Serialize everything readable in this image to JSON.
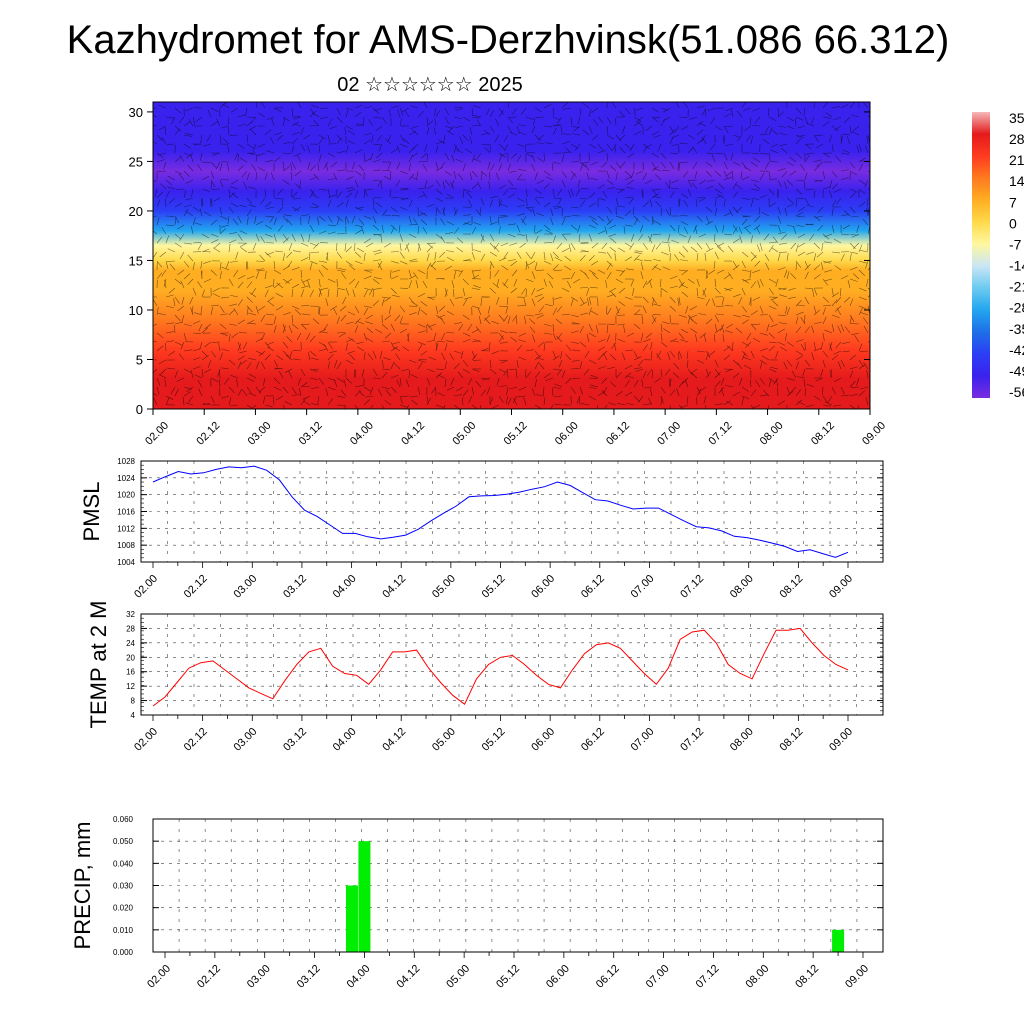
{
  "title": "Kazhydromet for AMS-Derzhvinsk(51.086 66.312)",
  "subtitle": "02 ☆☆☆☆☆☆ 2025",
  "colors": {
    "pmsl_line": "#0000ff",
    "temp_line": "#ff0000",
    "precip_bar": "#00ee00",
    "axis": "#000000"
  },
  "chart_data": [
    {
      "type": "heatmap",
      "name": "cross-section",
      "x_tick_labels": [
        "02.00",
        "02.12",
        "03.00",
        "03.12",
        "04.00",
        "04.12",
        "05.00",
        "05.12",
        "06.00",
        "06.12",
        "07.00",
        "07.12",
        "08.00",
        "08.12",
        "09.00"
      ],
      "y_tick_labels": [
        "0",
        "5",
        "10",
        "15",
        "20",
        "25",
        "30"
      ],
      "ylim": [
        0,
        31
      ],
      "colorbar_labels": [
        "35",
        "28",
        "21",
        "14",
        "7",
        "0",
        "-7",
        "-14",
        "-21",
        "-28",
        "-35",
        "-42",
        "-49",
        "-56"
      ],
      "colorbar_colors": [
        "#f4b8b8",
        "#e41a1c",
        "#ff3b1f",
        "#ff7a1f",
        "#ffae22",
        "#ffd94a",
        "#fff7a0",
        "#c9e6f5",
        "#6ccaf0",
        "#22a6ef",
        "#1e6fe8",
        "#2c3ef5",
        "#3a22ee",
        "#7a2ce0"
      ],
      "profile_levels": [
        0,
        3,
        6,
        9,
        12,
        14,
        15,
        16.5,
        18,
        20,
        22,
        24,
        26,
        28,
        31
      ],
      "profile_temps": [
        28,
        25,
        20,
        15,
        10,
        5,
        0,
        -10,
        -25,
        -40,
        -48,
        -55,
        -52,
        -50,
        -48
      ]
    },
    {
      "type": "line",
      "name": "pmsl",
      "ylabel": "PMSL",
      "y_ticks": [
        1004,
        1008,
        1012,
        1016,
        1020,
        1024,
        1028
      ],
      "ylim": [
        1004,
        1028
      ],
      "x_tick_labels": [
        "02.00",
        "02.12",
        "03.00",
        "03.12",
        "04.00",
        "04.12",
        "05.00",
        "05.12",
        "06.00",
        "06.12",
        "07.00",
        "07.12",
        "08.00",
        "08.12",
        "09.00"
      ],
      "x_steps": 42,
      "values": [
        1023,
        1024.3,
        1025.5,
        1024.9,
        1025.2,
        1026,
        1026.6,
        1026.4,
        1026.8,
        1025.8,
        1023.5,
        1019.5,
        1016.3,
        1014.8,
        1012.8,
        1010.8,
        1010.8,
        1010,
        1009.5,
        1009.9,
        1010.4,
        1011.8,
        1013.8,
        1015.6,
        1017.3,
        1019.5,
        1019.7,
        1019.8,
        1020.1,
        1020.6,
        1021.3,
        1021.9,
        1023,
        1022.2,
        1020.5,
        1018.8,
        1018.5,
        1017.5,
        1016.6,
        1016.8,
        1016.8,
        1015.3,
        1013.8,
        1012.4,
        1012.1,
        1011.4,
        1010.1,
        1009.8,
        1009.2,
        1008.5,
        1007.7,
        1006.5,
        1006.9,
        1006,
        1005.1,
        1006.3
      ],
      "x_positions_frac": null
    },
    {
      "type": "line",
      "name": "temp",
      "ylabel": "TEMP at 2 M",
      "y_ticks": [
        4,
        8,
        12,
        16,
        20,
        24,
        28,
        32
      ],
      "ylim": [
        4,
        32
      ],
      "x_tick_labels": [
        "02.00",
        "02.12",
        "03.00",
        "03.12",
        "04.00",
        "04.12",
        "05.00",
        "05.12",
        "06.00",
        "06.12",
        "07.00",
        "07.12",
        "08.00",
        "08.12",
        "09.00"
      ],
      "values": [
        6.5,
        9,
        13,
        17,
        18.5,
        19,
        16.5,
        14,
        11.5,
        10,
        8.5,
        13.5,
        18,
        21.5,
        22.5,
        17.5,
        15.5,
        15,
        12.5,
        16.5,
        21.5,
        21.5,
        22,
        17,
        13,
        9.5,
        7,
        14,
        18,
        20,
        20.5,
        18,
        15,
        12.5,
        11.5,
        16.5,
        21,
        23.5,
        24,
        22.5,
        19,
        15.5,
        12.5,
        17,
        25,
        27,
        27.5,
        24,
        18,
        15.5,
        14,
        21,
        27.5,
        27.5,
        28,
        24,
        20.5,
        18,
        16.5
      ]
    },
    {
      "type": "bar",
      "name": "precip",
      "ylabel": "PRECIP, mm",
      "y_ticks": [
        "0.000",
        "0.010",
        "0.020",
        "0.030",
        "0.040",
        "0.050",
        "0.060"
      ],
      "ylim": [
        0,
        0.06
      ],
      "x_tick_labels": [
        "02.00",
        "02.12",
        "03.00",
        "03.12",
        "04.00",
        "04.12",
        "05.00",
        "05.12",
        "06.00",
        "06.12",
        "07.00",
        "07.12",
        "08.00",
        "08.12",
        "09.00"
      ],
      "bars": [
        {
          "x": "03.21",
          "value": 0.03
        },
        {
          "x": "04.00",
          "value": 0.05
        },
        {
          "x": "08.18",
          "value": 0.01
        }
      ]
    }
  ]
}
